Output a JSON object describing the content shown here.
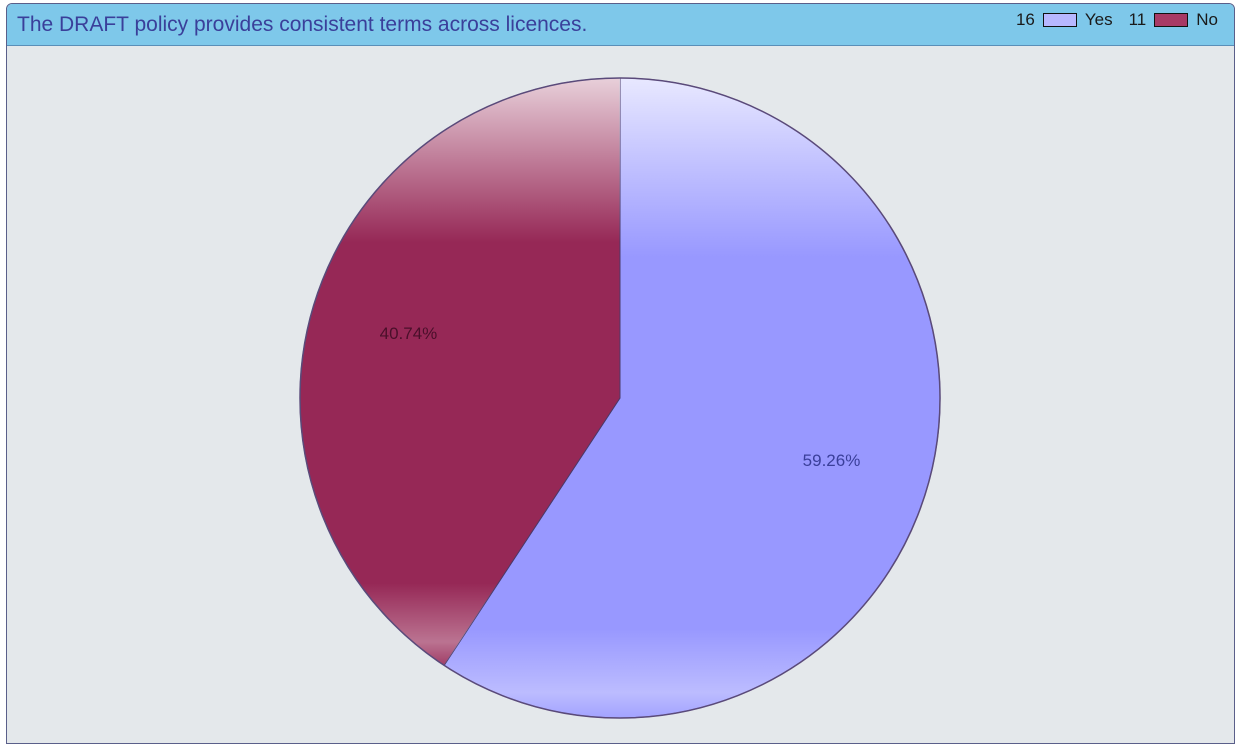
{
  "chart_data": {
    "type": "pie",
    "title": "The DRAFT policy provides consistent terms across licences.",
    "slices": [
      {
        "name": "Yes",
        "count": 16,
        "percent": 59.26,
        "label": "59.26%",
        "color": "#9898ff",
        "label_color": "#3a3f9a"
      },
      {
        "name": "No",
        "count": 11,
        "percent": 40.74,
        "label": "40.74%",
        "color": "#962856",
        "label_color": "#4a0f2a"
      }
    ],
    "legend": {
      "placement": "top-right",
      "items": [
        {
          "count": "16",
          "name": "Yes",
          "color": "#b8b8ff"
        },
        {
          "count": "11",
          "name": "No",
          "color": "#a83a66"
        }
      ]
    }
  },
  "colors": {
    "title_bar": "#7ec8ea",
    "background": "#e4e8eb",
    "title_text": "#3a3f9a"
  }
}
